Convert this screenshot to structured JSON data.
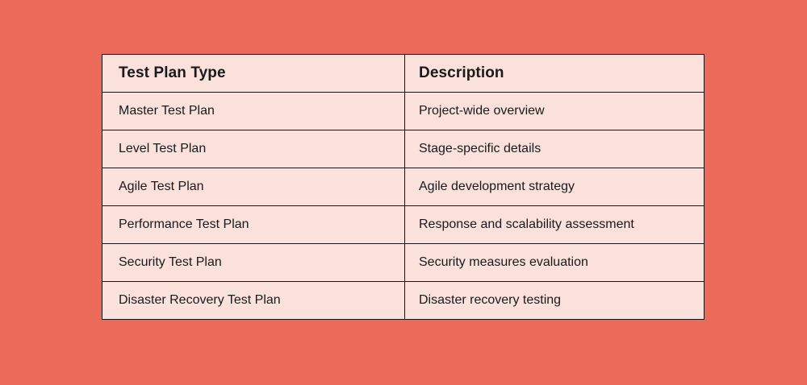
{
  "page": {
    "background_color": "#EC6A59"
  },
  "table": {
    "cell_background": "#FAE1DC",
    "border_color": "#141414",
    "text_color": "#1A1A1A",
    "headers": [
      "Test Plan Type",
      "Description"
    ],
    "rows": [
      {
        "type": "Master Test Plan",
        "description": "Project-wide overview"
      },
      {
        "type": "Level Test Plan",
        "description": "Stage-specific details"
      },
      {
        "type": "Agile Test Plan",
        "description": "Agile development strategy"
      },
      {
        "type": "Performance Test Plan",
        "description": "Response and scalability assessment"
      },
      {
        "type": "Security Test Plan",
        "description": "Security measures evaluation"
      },
      {
        "type": "Disaster Recovery Test Plan",
        "description": "Disaster recovery testing"
      }
    ]
  }
}
